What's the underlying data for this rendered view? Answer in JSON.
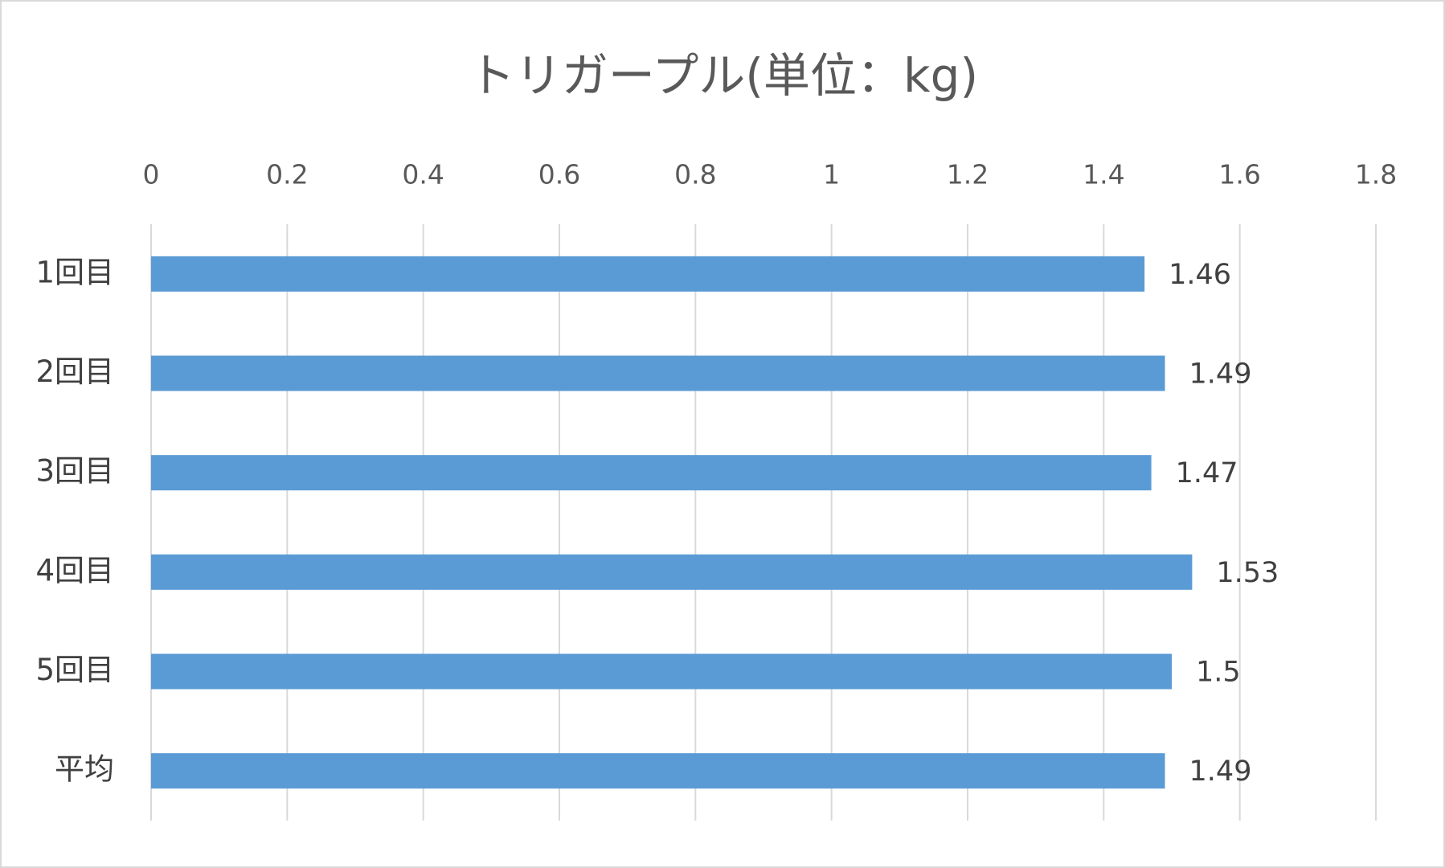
{
  "chart_data": {
    "type": "bar",
    "orientation": "horizontal",
    "title": "トリガープル(単位：kg)",
    "categories": [
      "1回目",
      "2回目",
      "3回目",
      "4回目",
      "5回目",
      "平均"
    ],
    "values": [
      1.46,
      1.49,
      1.47,
      1.53,
      1.5,
      1.49
    ],
    "color": "#5b9bd5",
    "xlim": [
      0,
      1.8
    ],
    "xticks": [
      0,
      0.2,
      0.4,
      0.6,
      0.8,
      1,
      1.2,
      1.4,
      1.6,
      1.8
    ],
    "grid": true
  }
}
